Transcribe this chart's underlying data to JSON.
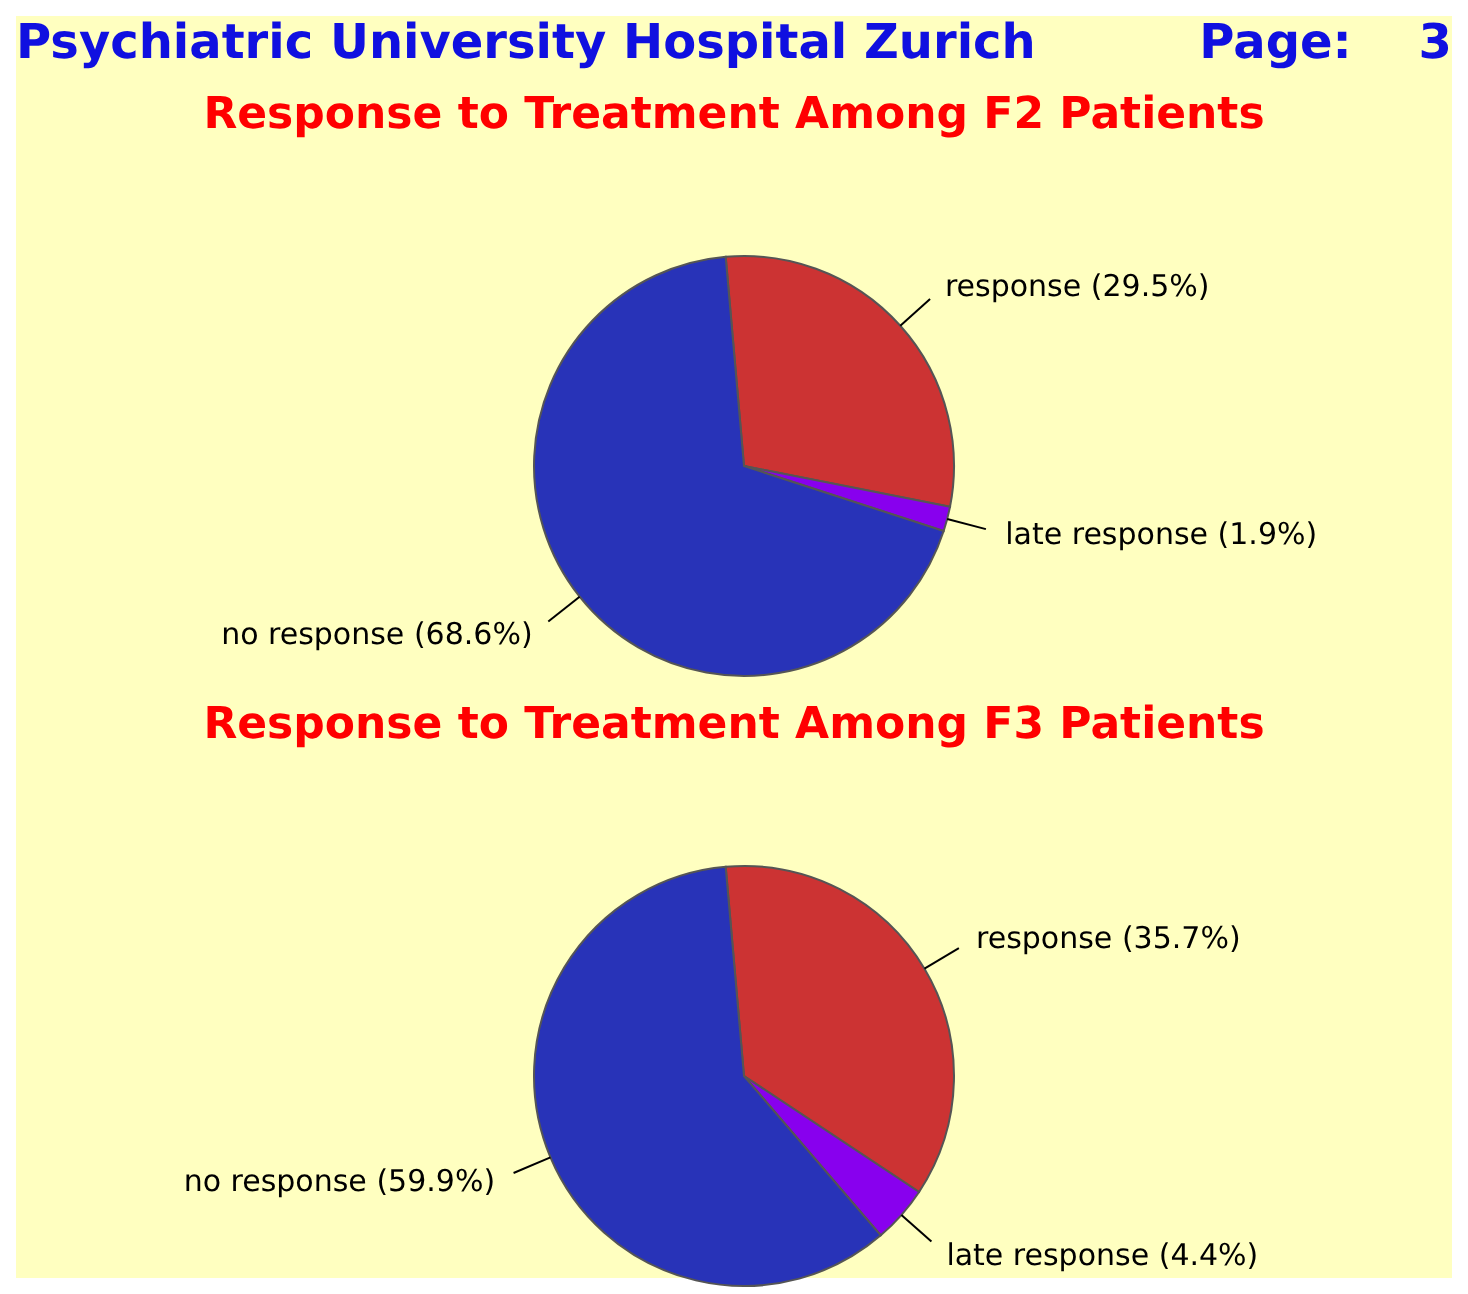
{
  "chart_data": [
    {
      "type": "pie",
      "title": "Response to Treatment Among F2 Patients",
      "annotations": [
        "Psychiatric University Hospital Zurich",
        "Page:    3"
      ],
      "categories": [
        "response",
        "late response",
        "no response"
      ],
      "values": [
        29.5,
        1.9,
        68.6
      ],
      "value_labels": [
        "(29.5%)",
        "(1.9%)",
        "(68.6%)"
      ],
      "colors": [
        "#cc3333",
        "#8800ee",
        "#2833b8"
      ],
      "legend": false
    },
    {
      "type": "pie",
      "title": "Response to Treatment Among F3 Patients",
      "categories": [
        "response",
        "late response",
        "no response"
      ],
      "values": [
        35.7,
        4.4,
        59.9
      ],
      "value_labels": [
        "(35.7%)",
        "(4.4%)",
        "(59.9%)"
      ],
      "colors": [
        "#cc3333",
        "#8800ee",
        "#2833b8"
      ],
      "legend": false
    }
  ]
}
